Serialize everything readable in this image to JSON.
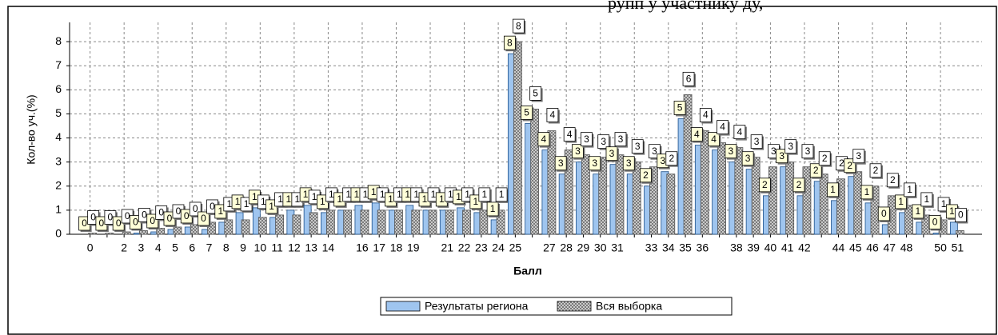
{
  "header_fragment": "рупп у участнику ду,",
  "chart_data": {
    "type": "bar",
    "x_label": "Балл",
    "y_label": "Кол-во уч.(%)",
    "categories": [
      "0",
      null,
      "2",
      "3",
      "4",
      "5",
      "6",
      "7",
      "8",
      "9",
      "10",
      "11",
      "12",
      "13",
      "14",
      null,
      "16",
      "17",
      "18",
      "19",
      null,
      "21",
      "22",
      "23",
      "24",
      "25",
      null,
      "27",
      "28",
      "29",
      "30",
      "31",
      null,
      "33",
      "34",
      "35",
      "36",
      null,
      "38",
      "39",
      "40",
      "41",
      "42",
      null,
      "44",
      "45",
      "46",
      "47",
      "48",
      null,
      "50",
      "51"
    ],
    "series": [
      {
        "name": "Результаты региона",
        "color": "#9fc5ef",
        "values": [
          0,
          0,
          0,
          0.05,
          0.1,
          0.2,
          0.3,
          0.2,
          0.5,
          0.9,
          1.1,
          0.7,
          1.0,
          1.2,
          0.9,
          1.0,
          1.2,
          1.3,
          1.0,
          1.2,
          1.0,
          1.0,
          1.1,
          0.9,
          0.6,
          7.5,
          4.6,
          3.5,
          2.5,
          3.0,
          2.5,
          2.9,
          2.5,
          2.0,
          2.6,
          4.8,
          3.7,
          3.5,
          3.0,
          2.7,
          1.6,
          2.8,
          1.6,
          2.2,
          1.4,
          2.4,
          1.3,
          0.4,
          0.9,
          0.5,
          0.05,
          0.5
        ],
        "value_labels": [
          "0",
          "0",
          "0",
          "0",
          "0",
          "0",
          "0",
          "0",
          "1",
          "1",
          "1",
          "1",
          "1",
          "1",
          "1",
          "1",
          "1",
          "1",
          "1",
          "1",
          "1",
          "1",
          "1",
          "1",
          "1",
          "8",
          "5",
          "4",
          "3",
          "3",
          "3",
          "3",
          "3",
          "2",
          "3",
          "5",
          "4",
          "4",
          "3",
          "3",
          "2",
          "3",
          "2",
          "2",
          "1",
          "2",
          "1",
          "0",
          "1",
          "1",
          "0",
          "1"
        ]
      },
      {
        "name": "Вся выборка",
        "color": "#c8c8c8",
        "values": [
          0.05,
          0.05,
          0.1,
          0.15,
          0.25,
          0.3,
          0.4,
          0.5,
          0.6,
          0.6,
          0.7,
          0.8,
          0.8,
          0.9,
          1.0,
          1.0,
          1.0,
          1.0,
          1.0,
          1.0,
          1.0,
          1.0,
          1.0,
          1.0,
          1.0,
          8.0,
          5.2,
          4.3,
          3.5,
          3.3,
          3.2,
          3.3,
          3.0,
          2.8,
          2.5,
          5.8,
          4.3,
          3.8,
          3.6,
          3.2,
          2.8,
          3.0,
          2.8,
          2.5,
          2.3,
          2.6,
          2.0,
          1.6,
          1.2,
          0.8,
          0.6,
          0.15
        ],
        "value_labels": [
          "0",
          "0",
          "0",
          "0",
          "0",
          "0",
          "0",
          "0",
          "1",
          "1",
          "1",
          "1",
          "1",
          "1",
          "1",
          "1",
          "1",
          "1",
          "1",
          "1",
          "1",
          "1",
          "1",
          "1",
          "1",
          "8",
          "5",
          "4",
          "4",
          "3",
          "3",
          "3",
          "3",
          "3",
          "2",
          "6",
          "4",
          "4",
          "4",
          "3",
          "3",
          "3",
          "3",
          "2",
          "2",
          "3",
          "2",
          "2",
          "1",
          "1",
          "1",
          "0"
        ]
      }
    ],
    "ylim": [
      0,
      8.8
    ],
    "yticks": [
      0,
      1,
      2,
      3,
      4,
      5,
      6,
      7,
      8
    ],
    "grid": true,
    "legend": "bottom"
  }
}
